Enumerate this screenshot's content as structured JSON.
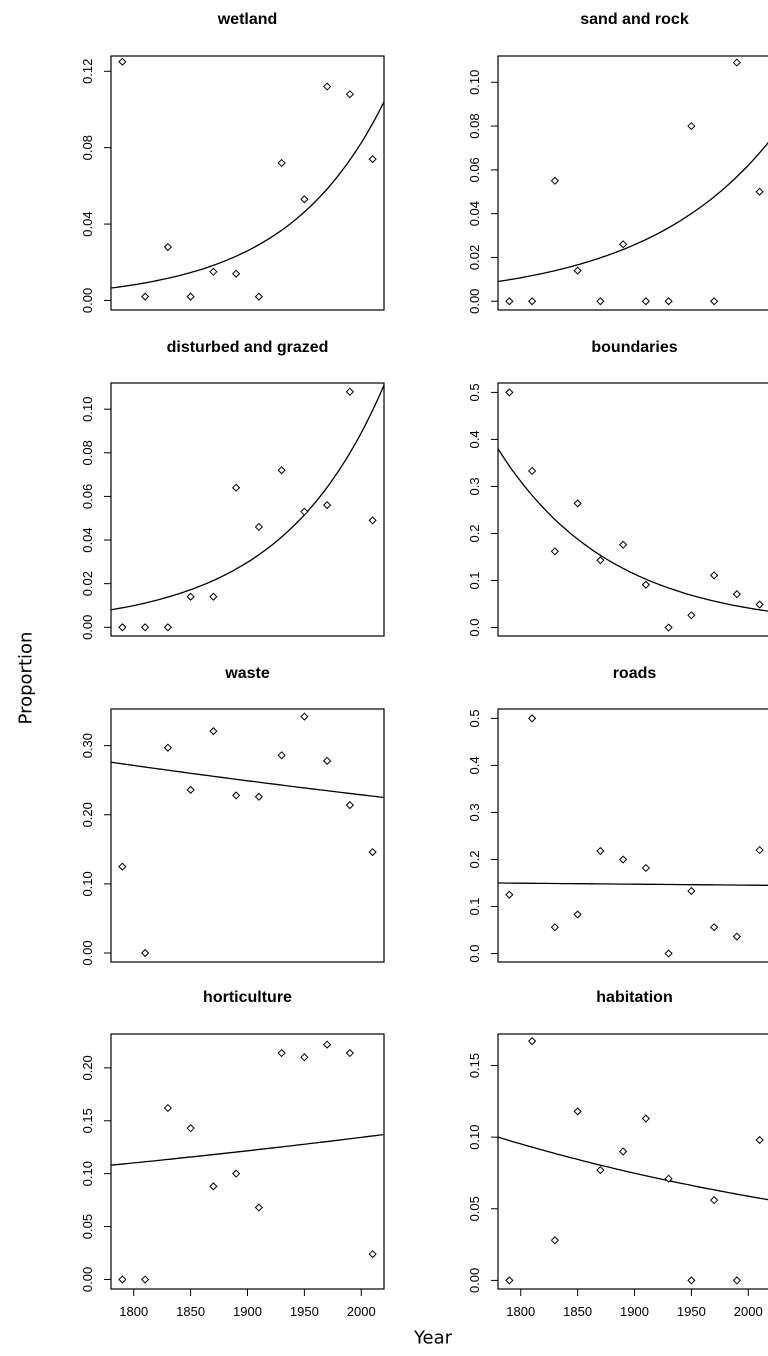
{
  "figure": {
    "ylabel": "Proportion",
    "xlabel": "Year"
  },
  "chart_data": [
    {
      "type": "scatter",
      "title": "wetland",
      "xlabel": "",
      "ylabel": "",
      "xlim": [
        1780,
        2020
      ],
      "ylim": [
        -0.005,
        0.128
      ],
      "yticks": [
        0.0,
        0.04,
        0.08,
        0.12
      ],
      "ytick_labels": [
        "0.00",
        "0.04",
        "0.08",
        "0.12"
      ],
      "x": [
        1790,
        1810,
        1830,
        1850,
        1870,
        1890,
        1910,
        1930,
        1950,
        1970,
        1990,
        2010
      ],
      "y": [
        0.125,
        0.002,
        0.028,
        0.002,
        0.015,
        0.014,
        0.002,
        0.072,
        0.053,
        0.112,
        0.108,
        0.074
      ],
      "fit": {
        "x": [
          1780,
          2020
        ],
        "y": [
          0.0065,
          0.104
        ],
        "curve": "exponential"
      },
      "grid": false,
      "legend": "none"
    },
    {
      "type": "scatter",
      "title": "sand and rock",
      "xlabel": "",
      "ylabel": "",
      "xlim": [
        1780,
        2020
      ],
      "ylim": [
        -0.004,
        0.112
      ],
      "yticks": [
        0.0,
        0.02,
        0.04,
        0.06,
        0.08,
        0.1
      ],
      "ytick_labels": [
        "0.00",
        "0.02",
        "0.04",
        "0.06",
        "0.08",
        "0.10"
      ],
      "x": [
        1790,
        1810,
        1830,
        1850,
        1870,
        1890,
        1910,
        1930,
        1950,
        1970,
        1990,
        2010
      ],
      "y": [
        0.0,
        0.0,
        0.055,
        0.014,
        0.0,
        0.026,
        0.0,
        0.0,
        0.08,
        0.0,
        0.109,
        0.05
      ],
      "fit": {
        "x": [
          1780,
          2020
        ],
        "y": [
          0.009,
          0.074
        ],
        "curve": "exponential"
      },
      "grid": false,
      "legend": "none"
    },
    {
      "type": "scatter",
      "title": "disturbed and grazed",
      "xlabel": "",
      "ylabel": "",
      "xlim": [
        1780,
        2020
      ],
      "ylim": [
        -0.004,
        0.112
      ],
      "yticks": [
        0.0,
        0.02,
        0.04,
        0.06,
        0.08,
        0.1
      ],
      "ytick_labels": [
        "0.00",
        "0.02",
        "0.04",
        "0.06",
        "0.08",
        "0.10"
      ],
      "x": [
        1790,
        1810,
        1830,
        1850,
        1870,
        1890,
        1910,
        1930,
        1950,
        1970,
        1990,
        2010
      ],
      "y": [
        0.0,
        0.0,
        0.0,
        0.014,
        0.014,
        0.064,
        0.046,
        0.072,
        0.053,
        0.056,
        0.108,
        0.049
      ],
      "fit": {
        "x": [
          1780,
          2020
        ],
        "y": [
          0.008,
          0.111
        ],
        "curve": "exponential"
      },
      "grid": false,
      "legend": "none"
    },
    {
      "type": "scatter",
      "title": "boundaries",
      "xlabel": "",
      "ylabel": "",
      "xlim": [
        1780,
        2020
      ],
      "ylim": [
        -0.018,
        0.52
      ],
      "yticks": [
        0.0,
        0.1,
        0.2,
        0.3,
        0.4,
        0.5
      ],
      "ytick_labels": [
        "0.0",
        "0.1",
        "0.2",
        "0.3",
        "0.4",
        "0.5"
      ],
      "x": [
        1790,
        1810,
        1830,
        1850,
        1870,
        1890,
        1910,
        1930,
        1950,
        1970,
        1990,
        2010
      ],
      "y": [
        0.5,
        0.333,
        0.162,
        0.264,
        0.143,
        0.176,
        0.091,
        0.0,
        0.026,
        0.111,
        0.071,
        0.049
      ],
      "fit": {
        "x": [
          1780,
          2020
        ],
        "y": [
          0.38,
          0.034
        ],
        "curve": "exponential"
      },
      "grid": false,
      "legend": "none"
    },
    {
      "type": "scatter",
      "title": "waste",
      "xlabel": "",
      "ylabel": "",
      "xlim": [
        1780,
        2020
      ],
      "ylim": [
        -0.013,
        0.353
      ],
      "yticks": [
        0.0,
        0.1,
        0.2,
        0.3
      ],
      "ytick_labels": [
        "0.00",
        "0.10",
        "0.20",
        "0.30"
      ],
      "x": [
        1790,
        1810,
        1830,
        1850,
        1870,
        1890,
        1910,
        1930,
        1950,
        1970,
        1990,
        2010
      ],
      "y": [
        0.125,
        0.0,
        0.297,
        0.236,
        0.321,
        0.228,
        0.226,
        0.286,
        0.342,
        0.278,
        0.214,
        0.146
      ],
      "fit": {
        "x": [
          1780,
          2020
        ],
        "y": [
          0.276,
          0.225
        ],
        "curve": "exponential"
      },
      "grid": false,
      "legend": "none"
    },
    {
      "type": "scatter",
      "title": "roads",
      "xlabel": "",
      "ylabel": "",
      "xlim": [
        1780,
        2020
      ],
      "ylim": [
        -0.018,
        0.52
      ],
      "yticks": [
        0.0,
        0.1,
        0.2,
        0.3,
        0.4,
        0.5
      ],
      "ytick_labels": [
        "0.0",
        "0.1",
        "0.2",
        "0.3",
        "0.4",
        "0.5"
      ],
      "x": [
        1790,
        1810,
        1830,
        1850,
        1870,
        1890,
        1910,
        1930,
        1950,
        1970,
        1990,
        2010
      ],
      "y": [
        0.125,
        0.5,
        0.056,
        0.083,
        0.218,
        0.2,
        0.182,
        0.0,
        0.133,
        0.056,
        0.036,
        0.22
      ],
      "fit": {
        "x": [
          1780,
          2020
        ],
        "y": [
          0.15,
          0.145
        ],
        "curve": "exponential"
      },
      "grid": false,
      "legend": "none"
    },
    {
      "type": "scatter",
      "title": "horticulture",
      "xlabel": "Year",
      "ylabel": "",
      "xlim": [
        1780,
        2020
      ],
      "ylim": [
        -0.009,
        0.232
      ],
      "yticks": [
        0.0,
        0.05,
        0.1,
        0.15,
        0.2
      ],
      "ytick_labels": [
        "0.00",
        "0.05",
        "0.10",
        "0.15",
        "0.20"
      ],
      "xticks": [
        1800,
        1850,
        1900,
        1950,
        2000
      ],
      "xtick_labels": [
        "1800",
        "1850",
        "1900",
        "1950",
        "2000"
      ],
      "x": [
        1790,
        1810,
        1830,
        1850,
        1870,
        1890,
        1910,
        1930,
        1950,
        1970,
        1990,
        2010
      ],
      "y": [
        0.0,
        0.0,
        0.162,
        0.143,
        0.088,
        0.1,
        0.068,
        0.214,
        0.21,
        0.222,
        0.214,
        0.024
      ],
      "fit": {
        "x": [
          1780,
          2020
        ],
        "y": [
          0.108,
          0.137
        ],
        "curve": "exponential"
      },
      "grid": false,
      "legend": "none"
    },
    {
      "type": "scatter",
      "title": "habitation",
      "xlabel": "Year",
      "ylabel": "",
      "xlim": [
        1780,
        2020
      ],
      "ylim": [
        -0.006,
        0.172
      ],
      "yticks": [
        0.0,
        0.05,
        0.1,
        0.15
      ],
      "ytick_labels": [
        "0.00",
        "0.05",
        "0.10",
        "0.15"
      ],
      "xticks": [
        1800,
        1850,
        1900,
        1950,
        2000
      ],
      "xtick_labels": [
        "1800",
        "1850",
        "1900",
        "1950",
        "2000"
      ],
      "x": [
        1790,
        1810,
        1830,
        1850,
        1870,
        1890,
        1910,
        1930,
        1950,
        1970,
        1990,
        2010
      ],
      "y": [
        0.0,
        0.167,
        0.028,
        0.118,
        0.077,
        0.09,
        0.113,
        0.071,
        0.0,
        0.056,
        0.0,
        0.098
      ],
      "fit": {
        "x": [
          1780,
          2020
        ],
        "y": [
          0.1,
          0.056
        ],
        "curve": "exponential"
      },
      "grid": false,
      "legend": "none"
    }
  ]
}
